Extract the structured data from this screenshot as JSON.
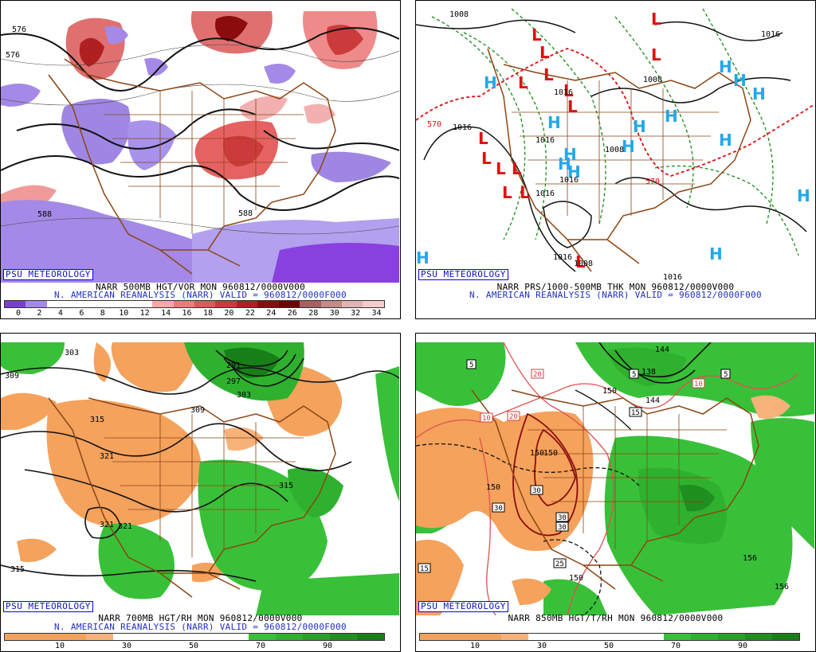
{
  "panels": [
    {
      "psu_label": "PSU METEOROLOGY",
      "caption_line1": "NARR 500MB HGT/VOR MON 960812/0000V000",
      "caption_line2": "N. AMERICAN REANALYSIS (NARR) VALID = 960812/0000F000",
      "colorbar": {
        "colors": [
          "#7a3fd0",
          "#a48ae6",
          "#ffffff",
          "#ffffff",
          "#ffffff",
          "#ffffff",
          "#ffffff",
          "#f6a9a9",
          "#ef7a7a",
          "#e05858",
          "#cc3b3b",
          "#b12020",
          "#8a0c0c",
          "#6d0000",
          "#a56060",
          "#c48a8a",
          "#e2b3b3",
          "#f4cccc"
        ],
        "ticks": [
          "0",
          "2",
          "4",
          "6",
          "8",
          "10",
          "12",
          "14",
          "16",
          "18",
          "20",
          "22",
          "24",
          "26",
          "28",
          "30",
          "32",
          "34"
        ]
      },
      "map_labels": [
        "576",
        "576",
        "588",
        "588"
      ]
    },
    {
      "psu_label": "PSU METEOROLOGY",
      "caption_line1": "NARR PRS/1000-500MB THK MON 960812/0000V000",
      "caption_line2": "N. AMERICAN REANALYSIS (NARR) VALID = 960812/0000F000",
      "map_labels": [
        "1008",
        "1016",
        "1008",
        "570",
        "1016",
        "1016",
        "1016",
        "1016",
        "1008",
        "1016",
        "570",
        "1016",
        "1008",
        "1016"
      ],
      "low_marker": "L",
      "high_marker": "H"
    },
    {
      "psu_label": "PSU METEOROLOGY",
      "caption_line1": "NARR 700MB HGT/RH MON 960812/0000V000",
      "caption_line2": "N. AMERICAN REANALYSIS (NARR) VALID = 960812/0000F000",
      "colorbar": {
        "colors": [
          "#f5a25d",
          "#f5a25d",
          "#f5a25d",
          "#f7b27a",
          "#ffffff",
          "#ffffff",
          "#ffffff",
          "#ffffff",
          "#ffffff",
          "#39c039",
          "#2fb12f",
          "#27a027",
          "#1f8f1f",
          "#187f18"
        ],
        "ticks": [
          "10",
          "30",
          "50",
          "70",
          "90"
        ]
      },
      "map_labels": [
        "303",
        "309",
        "291",
        "297",
        "303",
        "309",
        "315",
        "321",
        "315",
        "321",
        "321",
        "315"
      ]
    },
    {
      "psu_label": "PSU METEOROLOGY",
      "caption_line1": "NARR 850MB HGT/T/RH MON 960812/0000V000",
      "colorbar": {
        "colors": [
          "#f5a25d",
          "#f5a25d",
          "#f5a25d",
          "#f7b27a",
          "#ffffff",
          "#ffffff",
          "#ffffff",
          "#ffffff",
          "#ffffff",
          "#39c039",
          "#2fb12f",
          "#27a027",
          "#1f8f1f",
          "#187f18"
        ],
        "ticks": [
          "10",
          "30",
          "50",
          "70",
          "90"
        ]
      },
      "map_labels": [
        "5",
        "5",
        "5",
        "10",
        "10",
        "20",
        "20",
        "15",
        "15",
        "30",
        "30",
        "30",
        "30",
        "25",
        "150",
        "150",
        "150",
        "150",
        "138",
        "144",
        "156",
        "156",
        "144",
        "150"
      ]
    }
  ]
}
